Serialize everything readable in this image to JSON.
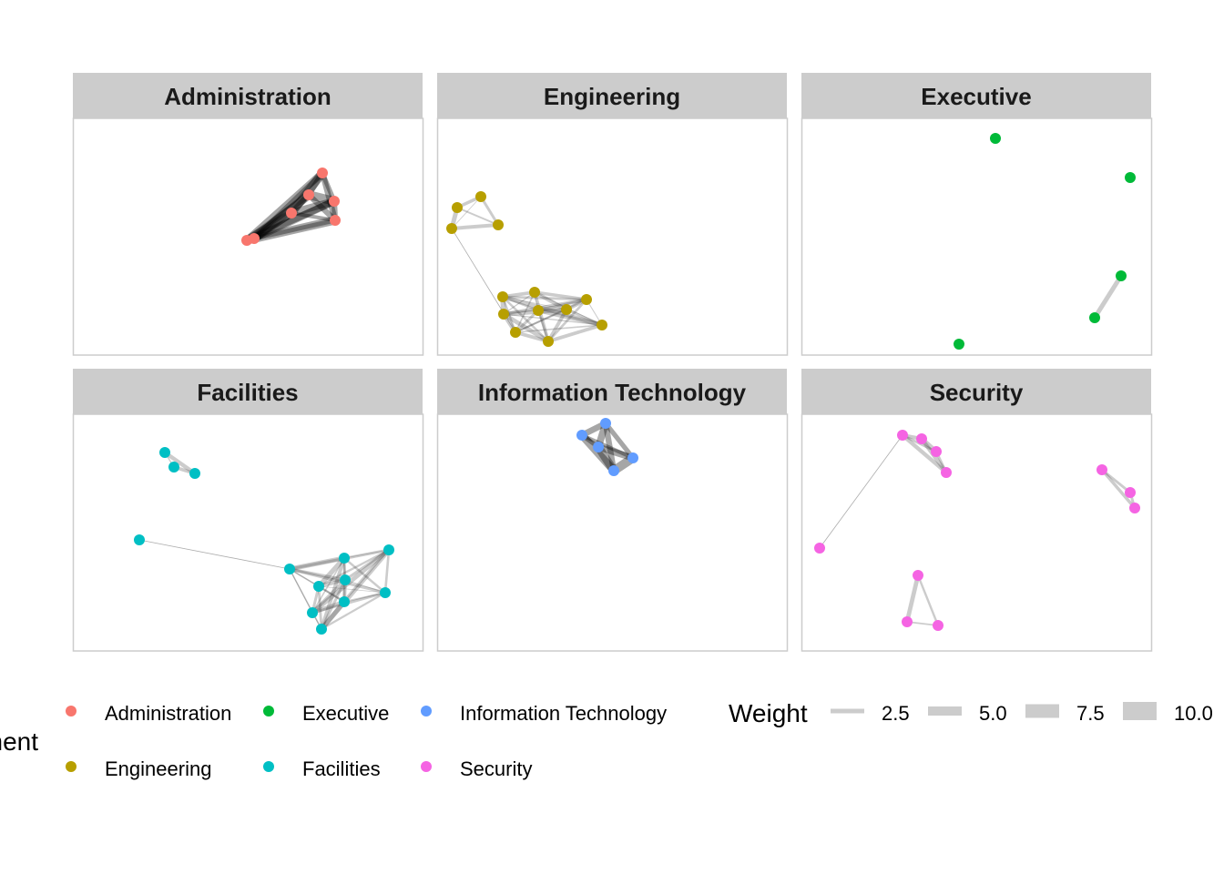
{
  "chart_data": {
    "type": "network",
    "title": "",
    "facets": [
      {
        "name": "Administration",
        "color": "#F8766D"
      },
      {
        "name": "Engineering",
        "color": "#B79F00"
      },
      {
        "name": "Executive",
        "color": "#00BA38"
      },
      {
        "name": "Facilities",
        "color": "#00BFC4"
      },
      {
        "name": "Information Technology",
        "color": "#619CFF"
      },
      {
        "name": "Security",
        "color": "#F564E3"
      }
    ],
    "legend_color": {
      "title": "Department",
      "entries": [
        "Administration",
        "Executive",
        "Information Technology",
        "Engineering",
        "Facilities",
        "Security"
      ]
    },
    "legend_weight": {
      "title": "Weight",
      "values": [
        2.5,
        5.0,
        7.5,
        10.0
      ],
      "labels": [
        "2.5",
        "5.0",
        "7.5",
        "10.0"
      ]
    },
    "legend_placement": "bottom"
  }
}
